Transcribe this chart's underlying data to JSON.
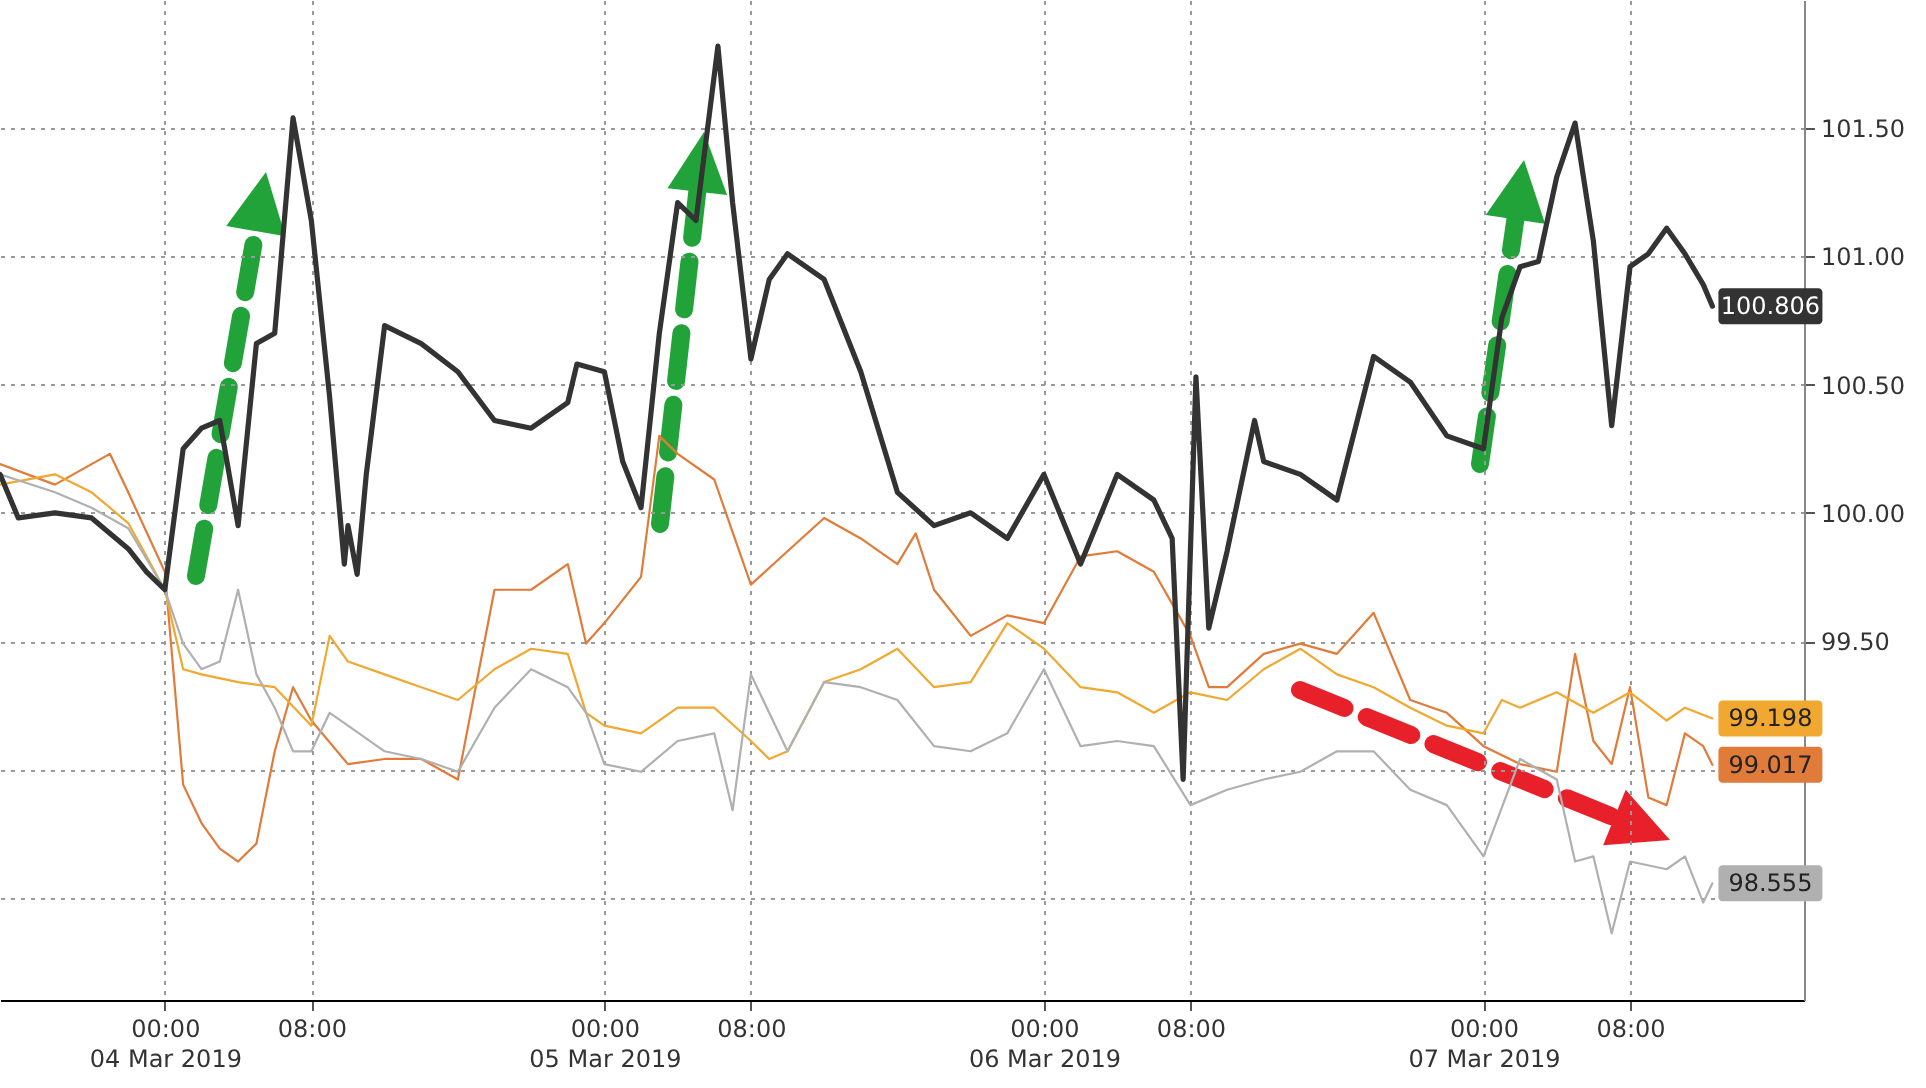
{
  "chart_data": {
    "type": "line",
    "grid": true,
    "xlim": [
      "2019-03-03T15:00",
      "2019-03-07T17:30"
    ],
    "xticks": [
      {
        "value": "2019-03-04T00:00",
        "label": "00:00\n04 Mar 2019"
      },
      {
        "value": "2019-03-04T08:00",
        "label": "08:00"
      },
      {
        "value": "2019-03-05T00:00",
        "label": "00:00\n05 Mar 2019"
      },
      {
        "value": "2019-03-05T08:00",
        "label": "08:00"
      },
      {
        "value": "2019-03-06T00:00",
        "label": "00:00\n06 Mar 2019"
      },
      {
        "value": "2019-03-06T08:00",
        "label": "08:00"
      },
      {
        "value": "2019-03-07T00:00",
        "label": "00:00\n07 Mar 2019"
      },
      {
        "value": "2019-03-07T08:00",
        "label": "08:00"
      }
    ],
    "ylim": [
      98.1,
      102.0
    ],
    "yticks": [
      {
        "value": 98.5,
        "label": null
      },
      {
        "value": 99,
        "label": null
      },
      {
        "value": 99.5,
        "label": "99.50"
      },
      {
        "value": 100,
        "label": "100.00"
      },
      {
        "value": 100.5,
        "label": "100.50"
      },
      {
        "value": 101,
        "label": "101.00"
      },
      {
        "value": 101.5,
        "label": "101.50"
      }
    ],
    "annotations": [
      {
        "text": "100.806",
        "x": "2019-03-07T12:30",
        "y": 100.806
      },
      {
        "text": "99.198",
        "x": "2019-03-07T12:30",
        "y": 99.198
      },
      {
        "text": "99.017",
        "x": "2019-03-07T12:30",
        "y": 99.017
      },
      {
        "text": "98.555",
        "x": "2019-03-07T12:30",
        "y": 98.555
      }
    ],
    "series": [
      {
        "color": "#e07b39",
        "x": [
          "2019-03-03T15:00",
          "2019-03-03T18:00",
          "2019-03-03T21:00",
          "2019-03-03T22:00",
          "2019-03-04T00:00",
          "2019-03-04T01:00",
          "2019-03-04T02:00",
          "2019-03-04T03:00",
          "2019-03-04T04:00",
          "2019-03-04T05:00",
          "2019-03-04T06:00",
          "2019-03-04T07:00",
          "2019-03-04T08:00",
          "2019-03-04T10:00",
          "2019-03-04T12:00",
          "2019-03-04T14:00",
          "2019-03-04T16:00",
          "2019-03-04T18:00",
          "2019-03-04T20:00",
          "2019-03-04T22:00",
          "2019-03-04T23:00",
          "2019-03-05T00:00",
          "2019-03-05T02:00",
          "2019-03-05T03:00",
          "2019-03-05T04:00",
          "2019-03-05T06:00",
          "2019-03-05T08:00",
          "2019-03-05T10:00",
          "2019-03-05T12:00",
          "2019-03-05T14:00",
          "2019-03-05T16:00",
          "2019-03-05T17:00",
          "2019-03-05T18:00",
          "2019-03-05T20:00",
          "2019-03-05T22:00",
          "2019-03-06T00:00",
          "2019-03-06T02:00",
          "2019-03-06T04:00",
          "2019-03-06T06:00",
          "2019-03-06T08:00",
          "2019-03-06T09:00",
          "2019-03-06T10:00",
          "2019-03-06T12:00",
          "2019-03-06T14:00",
          "2019-03-06T16:00",
          "2019-03-06T18:00",
          "2019-03-06T20:00",
          "2019-03-06T22:00",
          "2019-03-07T00:00",
          "2019-03-07T02:00",
          "2019-03-07T04:00",
          "2019-03-07T05:00",
          "2019-03-07T06:00",
          "2019-03-07T07:00",
          "2019-03-07T08:00",
          "2019-03-07T09:00",
          "2019-03-07T10:00",
          "2019-03-07T11:00",
          "2019-03-07T12:00",
          "2019-03-07T12:30"
        ],
        "values": [
          100.19,
          100.11,
          100.23,
          100.08,
          99.77,
          98.94,
          98.79,
          98.69,
          98.64,
          98.71,
          99.07,
          99.32,
          99.19,
          99.02,
          99.04,
          99.04,
          98.96,
          99.7,
          99.7,
          99.8,
          99.49,
          99.57,
          99.75,
          100.3,
          100.23,
          100.13,
          99.72,
          99.85,
          99.98,
          99.9,
          99.8,
          99.92,
          99.7,
          99.52,
          99.6,
          99.57,
          99.83,
          99.85,
          99.77,
          99.52,
          99.32,
          99.32,
          99.45,
          99.49,
          99.45,
          99.61,
          99.27,
          99.22,
          99.09,
          99.02,
          98.99,
          99.45,
          99.11,
          99.02,
          99.32,
          98.89,
          98.86,
          99.14,
          99.09,
          99.017
        ]
      },
      {
        "color": "#f0a830",
        "x": [
          "2019-03-03T15:00",
          "2019-03-03T18:00",
          "2019-03-03T20:00",
          "2019-03-03T22:00",
          "2019-03-04T00:00",
          "2019-03-04T01:00",
          "2019-03-04T02:00",
          "2019-03-04T04:00",
          "2019-03-04T06:00",
          "2019-03-04T08:00",
          "2019-03-04T09:00",
          "2019-03-04T10:00",
          "2019-03-04T12:00",
          "2019-03-04T14:00",
          "2019-03-04T16:00",
          "2019-03-04T18:00",
          "2019-03-04T20:00",
          "2019-03-04T22:00",
          "2019-03-04T23:00",
          "2019-03-05T00:00",
          "2019-03-05T02:00",
          "2019-03-05T04:00",
          "2019-03-05T06:00",
          "2019-03-05T08:00",
          "2019-03-05T09:00",
          "2019-03-05T10:00",
          "2019-03-05T12:00",
          "2019-03-05T14:00",
          "2019-03-05T16:00",
          "2019-03-05T18:00",
          "2019-03-05T20:00",
          "2019-03-05T22:00",
          "2019-03-06T00:00",
          "2019-03-06T02:00",
          "2019-03-06T04:00",
          "2019-03-06T06:00",
          "2019-03-06T08:00",
          "2019-03-06T10:00",
          "2019-03-06T12:00",
          "2019-03-06T14:00",
          "2019-03-06T16:00",
          "2019-03-06T18:00",
          "2019-03-06T20:00",
          "2019-03-06T22:00",
          "2019-03-07T00:00",
          "2019-03-07T01:00",
          "2019-03-07T02:00",
          "2019-03-07T04:00",
          "2019-03-07T06:00",
          "2019-03-07T08:00",
          "2019-03-07T10:00",
          "2019-03-07T11:00",
          "2019-03-07T12:30"
        ],
        "values": [
          100.11,
          100.15,
          100.08,
          99.96,
          99.7,
          99.39,
          99.37,
          99.34,
          99.32,
          99.17,
          99.52,
          99.42,
          99.37,
          99.32,
          99.27,
          99.39,
          99.47,
          99.45,
          99.22,
          99.17,
          99.14,
          99.24,
          99.24,
          99.11,
          99.04,
          99.07,
          99.34,
          99.39,
          99.47,
          99.32,
          99.34,
          99.57,
          99.47,
          99.32,
          99.3,
          99.22,
          99.3,
          99.27,
          99.39,
          99.47,
          99.37,
          99.32,
          99.24,
          99.17,
          99.14,
          99.27,
          99.24,
          99.3,
          99.22,
          99.3,
          99.19,
          99.24,
          99.198
        ]
      },
      {
        "color": "#b0b0b0",
        "x": [
          "2019-03-03T15:00",
          "2019-03-03T18:00",
          "2019-03-03T20:00",
          "2019-03-03T22:00",
          "2019-03-04T00:00",
          "2019-03-04T01:00",
          "2019-03-04T02:00",
          "2019-03-04T03:00",
          "2019-03-04T04:00",
          "2019-03-04T05:00",
          "2019-03-04T06:00",
          "2019-03-04T07:00",
          "2019-03-04T08:00",
          "2019-03-04T09:00",
          "2019-03-04T10:00",
          "2019-03-04T12:00",
          "2019-03-04T14:00",
          "2019-03-04T16:00",
          "2019-03-04T18:00",
          "2019-03-04T20:00",
          "2019-03-04T22:00",
          "2019-03-04T23:00",
          "2019-03-05T00:00",
          "2019-03-05T02:00",
          "2019-03-05T04:00",
          "2019-03-05T06:00",
          "2019-03-05T07:00",
          "2019-03-05T08:00",
          "2019-03-05T10:00",
          "2019-03-05T12:00",
          "2019-03-05T14:00",
          "2019-03-05T16:00",
          "2019-03-05T18:00",
          "2019-03-05T20:00",
          "2019-03-05T22:00",
          "2019-03-06T00:00",
          "2019-03-06T02:00",
          "2019-03-06T04:00",
          "2019-03-06T06:00",
          "2019-03-06T08:00",
          "2019-03-06T10:00",
          "2019-03-06T12:00",
          "2019-03-06T14:00",
          "2019-03-06T16:00",
          "2019-03-06T18:00",
          "2019-03-06T20:00",
          "2019-03-06T22:00",
          "2019-03-07T00:00",
          "2019-03-07T02:00",
          "2019-03-07T04:00",
          "2019-03-07T05:00",
          "2019-03-07T06:00",
          "2019-03-07T07:00",
          "2019-03-07T08:00",
          "2019-03-07T10:00",
          "2019-03-07T11:00",
          "2019-03-07T12:00",
          "2019-03-07T12:30"
        ],
        "values": [
          100.15,
          100.08,
          100.02,
          99.94,
          99.7,
          99.49,
          99.39,
          99.42,
          99.7,
          99.37,
          99.24,
          99.07,
          99.07,
          99.22,
          99.17,
          99.07,
          99.04,
          98.99,
          99.24,
          99.39,
          99.32,
          99.22,
          99.02,
          98.99,
          99.11,
          99.14,
          98.84,
          99.37,
          99.07,
          99.34,
          99.32,
          99.27,
          99.09,
          99.07,
          99.14,
          99.39,
          99.09,
          99.11,
          99.09,
          98.86,
          98.92,
          98.96,
          98.99,
          99.07,
          99.07,
          98.92,
          98.86,
          98.66,
          99.04,
          98.96,
          98.64,
          98.66,
          98.36,
          98.64,
          98.61,
          98.66,
          98.48,
          98.555
        ]
      },
      {
        "color": "#333333",
        "x": [
          "2019-03-03T15:00",
          "2019-03-03T16:00",
          "2019-03-03T18:00",
          "2019-03-03T20:00",
          "2019-03-03T22:00",
          "2019-03-03T23:00",
          "2019-03-04T00:00",
          "2019-03-04T01:00",
          "2019-03-04T02:00",
          "2019-03-04T03:00",
          "2019-03-04T04:00",
          "2019-03-04T05:00",
          "2019-03-04T06:00",
          "2019-03-04T07:00",
          "2019-03-04T08:00",
          "2019-03-04T09:00",
          "2019-03-04T09:48",
          "2019-03-04T10:00",
          "2019-03-04T10:30",
          "2019-03-04T11:00",
          "2019-03-04T12:00",
          "2019-03-04T14:00",
          "2019-03-04T16:00",
          "2019-03-04T18:00",
          "2019-03-04T20:00",
          "2019-03-04T22:00",
          "2019-03-04T22:30",
          "2019-03-05T00:00",
          "2019-03-05T01:00",
          "2019-03-05T02:00",
          "2019-03-05T03:00",
          "2019-03-05T04:00",
          "2019-03-05T05:00",
          "2019-03-05T06:12",
          "2019-03-05T07:00",
          "2019-03-05T08:00",
          "2019-03-05T09:00",
          "2019-03-05T10:00",
          "2019-03-05T12:00",
          "2019-03-05T14:00",
          "2019-03-05T16:00",
          "2019-03-05T18:00",
          "2019-03-05T20:00",
          "2019-03-05T22:00",
          "2019-03-06T00:00",
          "2019-03-06T02:00",
          "2019-03-06T04:00",
          "2019-03-06T06:00",
          "2019-03-06T07:00",
          "2019-03-06T07:36",
          "2019-03-06T08:18",
          "2019-03-06T09:00",
          "2019-03-06T10:00",
          "2019-03-06T11:30",
          "2019-03-06T12:00",
          "2019-03-06T14:00",
          "2019-03-06T16:00",
          "2019-03-06T18:00",
          "2019-03-06T20:00",
          "2019-03-06T22:00",
          "2019-03-07T00:00",
          "2019-03-07T01:00",
          "2019-03-07T02:00",
          "2019-03-07T03:00",
          "2019-03-07T04:00",
          "2019-03-07T05:00",
          "2019-03-07T06:00",
          "2019-03-07T07:00",
          "2019-03-07T08:00",
          "2019-03-07T09:00",
          "2019-03-07T10:00",
          "2019-03-07T11:00",
          "2019-03-07T12:00",
          "2019-03-07T12:30"
        ],
        "values": [
          100.15,
          99.98,
          100.0,
          99.98,
          99.86,
          99.77,
          99.7,
          100.25,
          100.33,
          100.36,
          99.95,
          100.66,
          100.7,
          101.54,
          101.14,
          100.45,
          99.8,
          99.95,
          99.76,
          100.15,
          100.73,
          100.66,
          100.55,
          100.36,
          100.33,
          100.43,
          100.58,
          100.55,
          100.2,
          100.02,
          100.7,
          101.21,
          101.14,
          101.82,
          101.21,
          100.6,
          100.91,
          101.01,
          100.91,
          100.55,
          100.08,
          99.95,
          100.0,
          99.9,
          100.15,
          99.8,
          100.15,
          100.05,
          99.9,
          98.96,
          100.53,
          99.55,
          99.85,
          100.36,
          100.2,
          100.15,
          100.05,
          100.61,
          100.51,
          100.3,
          100.25,
          100.76,
          100.96,
          100.98,
          101.31,
          101.52,
          101.06,
          100.34,
          100.96,
          101.01,
          101.11,
          101.01,
          100.89,
          100.806
        ]
      }
    ]
  }
}
